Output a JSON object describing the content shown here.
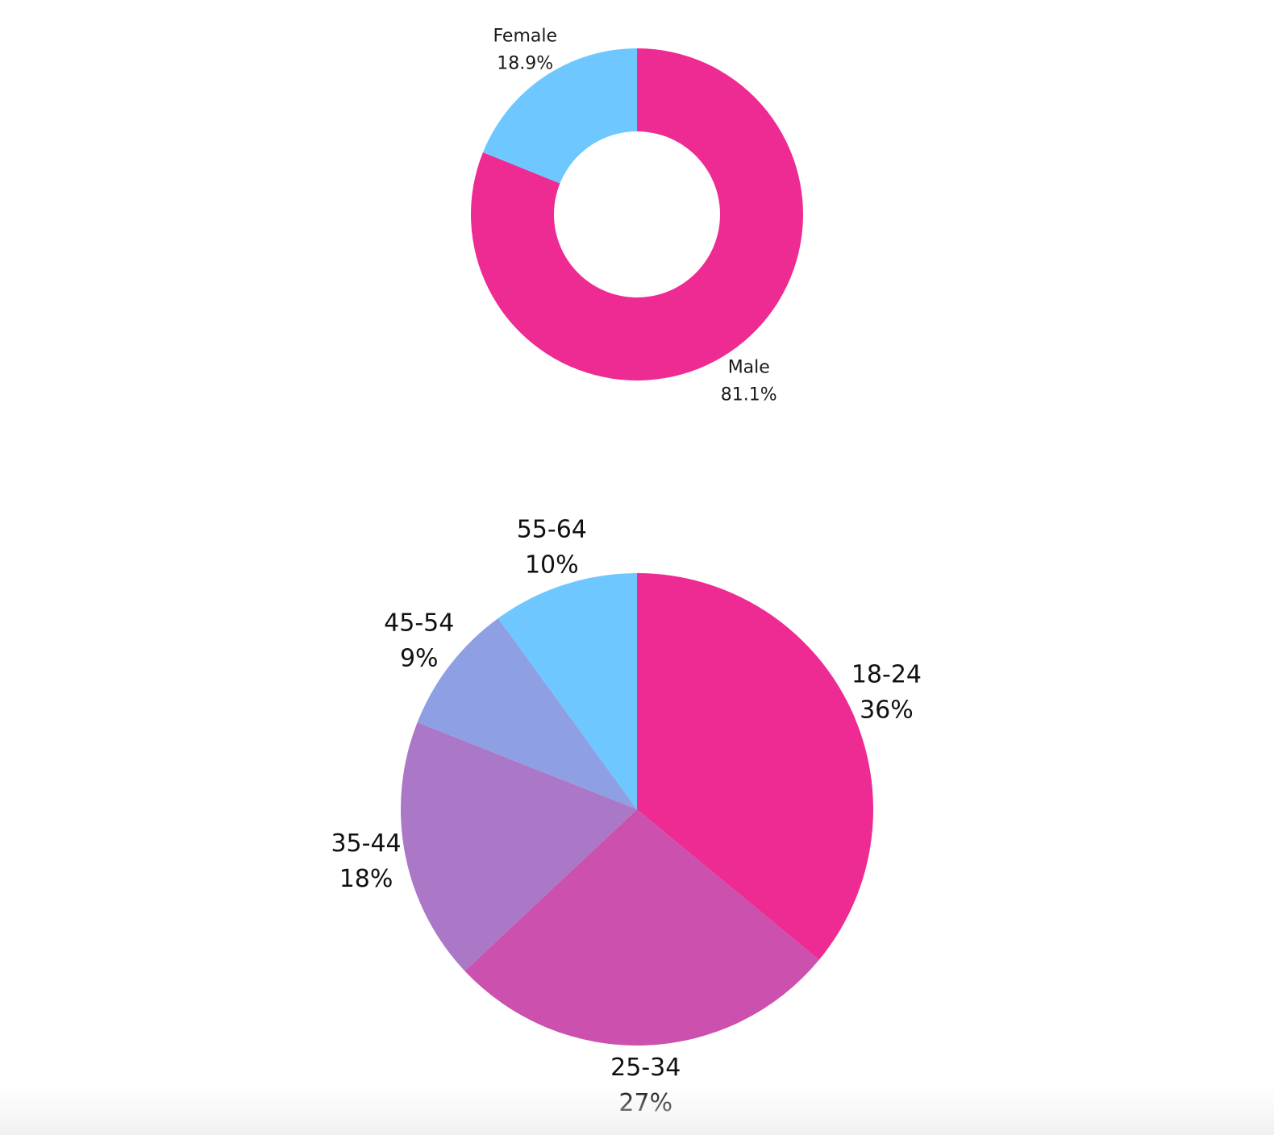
{
  "chart_data": [
    {
      "type": "pie",
      "variant": "donut",
      "categories": [
        "Male",
        "Female"
      ],
      "values": [
        81.1,
        18.9
      ],
      "value_labels": [
        "81.1%",
        "18.9%"
      ],
      "colors": [
        "#ee2a93",
        "#6ec8ff"
      ],
      "title": "",
      "legend": "none"
    },
    {
      "type": "pie",
      "categories": [
        "18-24",
        "25-34",
        "35-44",
        "45-54",
        "55-64"
      ],
      "values": [
        36,
        27,
        18,
        9,
        10
      ],
      "value_labels": [
        "36%",
        "27%",
        "18%",
        "9%",
        "10%"
      ],
      "colors": [
        "#ee2a93",
        "#cc50ad",
        "#ab78c8",
        "#8e9fe3",
        "#6ec8ff"
      ],
      "title": "",
      "legend": "none"
    }
  ]
}
